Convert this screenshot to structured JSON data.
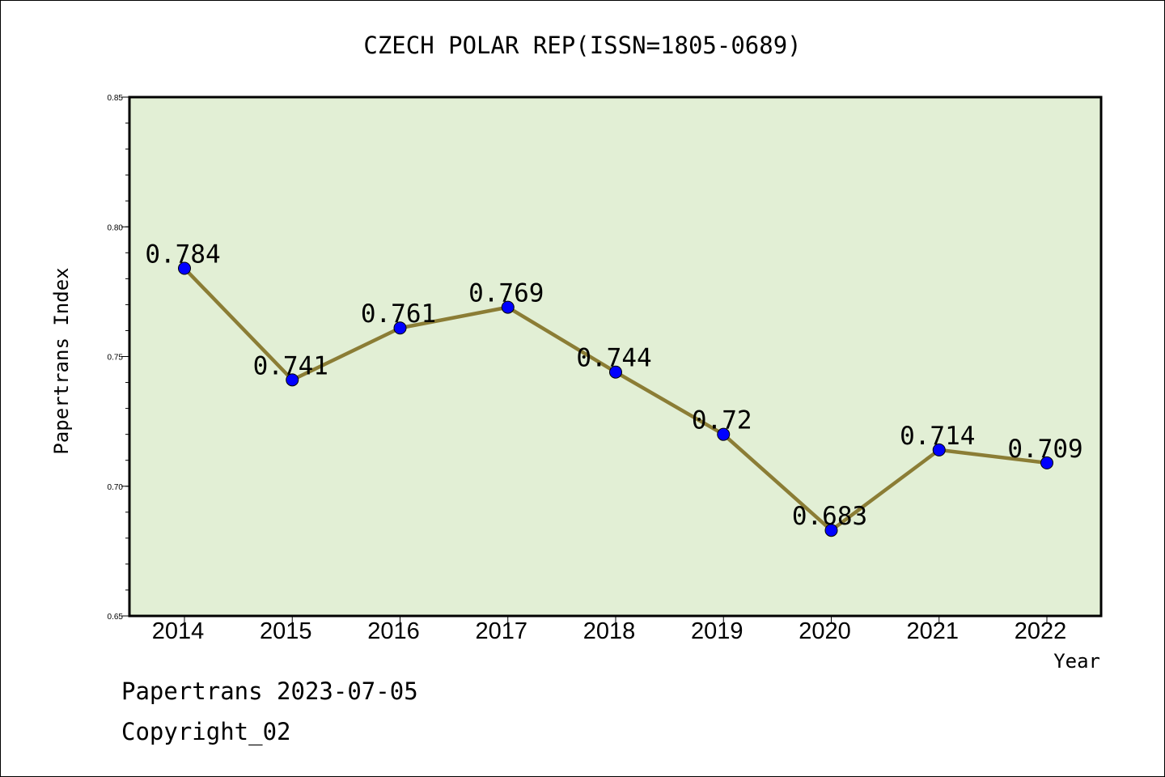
{
  "chart_data": {
    "type": "line",
    "title": "CZECH POLAR REP(ISSN=1805-0689)",
    "xlabel": "Year",
    "ylabel": "Papertrans Index",
    "categories": [
      "2014",
      "2015",
      "2016",
      "2017",
      "2018",
      "2019",
      "2020",
      "2021",
      "2022"
    ],
    "values": [
      0.784,
      0.741,
      0.761,
      0.769,
      0.744,
      0.72,
      0.683,
      0.714,
      0.709
    ],
    "value_labels": [
      "0.784",
      "0.741",
      "0.761",
      "0.769",
      "0.744",
      "0.72",
      "0.683",
      "0.714",
      "0.709"
    ],
    "ylim": [
      0.65,
      0.85
    ],
    "yticks": [
      0.65,
      0.7,
      0.75,
      0.8,
      0.85
    ],
    "ytick_labels": [
      "0.65",
      "0.70",
      "0.75",
      "0.80",
      "0.85"
    ],
    "grid": false,
    "colors": {
      "line": "#8b7d35",
      "marker": "#0000ff",
      "plot_background": "#e2efd5"
    }
  },
  "footer": {
    "line1": "Papertrans 2023-07-05",
    "line2": "Copyright_02"
  }
}
